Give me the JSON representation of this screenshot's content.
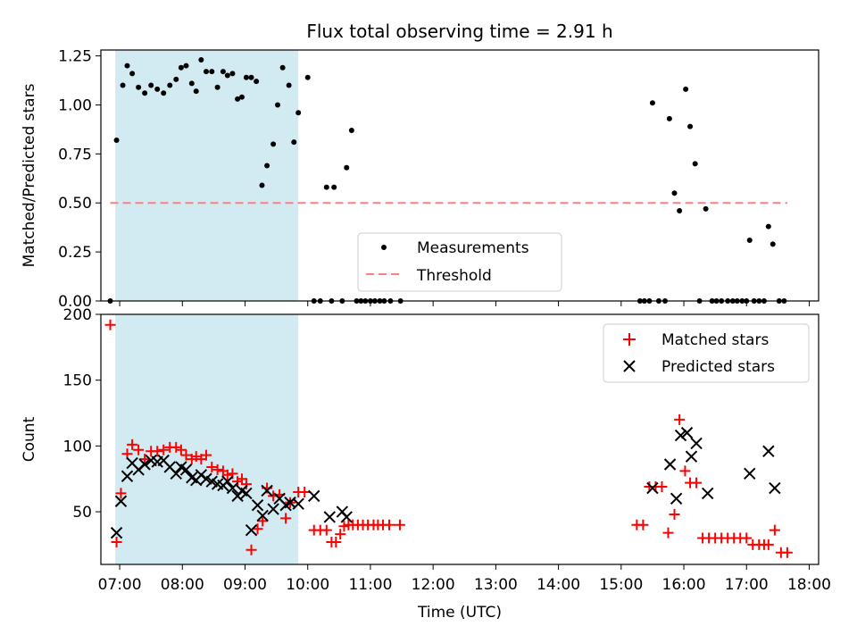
{
  "figure": {
    "title": "Flux total observing time = 2.91 h",
    "xlabel": "Time (UTC)"
  },
  "chart_data": [
    {
      "type": "scatter",
      "ylabel": "Matched/Predicted stars",
      "xlim": [
        6.7,
        18.15
      ],
      "ylim": [
        0,
        1.28
      ],
      "yticks": [
        0.0,
        0.25,
        0.5,
        0.75,
        1.0,
        1.25
      ],
      "ytick_labels": [
        "0.00",
        "0.25",
        "0.50",
        "0.75",
        "1.00",
        "1.25"
      ],
      "highlight_span": [
        6.93,
        9.85
      ],
      "highlight_color": "#add8e6",
      "legend_position": "lower-center",
      "series": [
        {
          "name": "Measurements",
          "marker": "dot",
          "color": "#000000",
          "x": [
            6.85,
            6.95,
            7.05,
            7.12,
            7.2,
            7.3,
            7.4,
            7.5,
            7.6,
            7.7,
            7.8,
            7.9,
            7.98,
            8.06,
            8.15,
            8.22,
            8.3,
            8.38,
            8.47,
            8.56,
            8.65,
            8.72,
            8.8,
            8.88,
            8.95,
            9.02,
            9.1,
            9.18,
            9.27,
            9.35,
            9.45,
            9.52,
            9.6,
            9.7,
            9.78,
            9.85,
            10.0,
            10.1,
            10.2,
            10.3,
            10.38,
            10.42,
            10.55,
            10.62,
            10.7,
            10.78,
            10.85,
            10.92,
            11.0,
            11.07,
            11.15,
            11.22,
            11.32,
            11.48,
            15.3,
            15.37,
            15.45,
            15.5,
            15.6,
            15.7,
            15.77,
            15.85,
            15.93,
            16.03,
            16.1,
            16.18,
            16.25,
            16.35,
            16.45,
            16.52,
            16.6,
            16.7,
            16.78,
            16.85,
            16.93,
            17.0,
            17.05,
            17.12,
            17.2,
            17.28,
            17.35,
            17.42,
            17.52,
            17.6
          ],
          "y": [
            0.0,
            0.82,
            1.1,
            1.2,
            1.16,
            1.09,
            1.06,
            1.1,
            1.08,
            1.06,
            1.1,
            1.13,
            1.19,
            1.2,
            1.11,
            1.07,
            1.23,
            1.17,
            1.17,
            1.09,
            1.17,
            1.15,
            1.16,
            1.03,
            1.04,
            1.14,
            1.14,
            1.12,
            0.59,
            0.69,
            0.8,
            1.0,
            1.19,
            1.1,
            0.81,
            0.96,
            1.14,
            0.0,
            0.0,
            0.58,
            0.0,
            0.58,
            0.0,
            0.68,
            0.87,
            0.0,
            0.0,
            0.0,
            0.0,
            0.0,
            0.0,
            0.0,
            0.0,
            0.0,
            0.0,
            0.0,
            0.0,
            1.01,
            0.0,
            0.0,
            0.93,
            0.55,
            0.46,
            1.08,
            0.89,
            0.7,
            0.0,
            0.47,
            0.0,
            0.0,
            0.0,
            0.0,
            0.0,
            0.0,
            0.0,
            0.0,
            0.31,
            0.0,
            0.0,
            0.0,
            0.38,
            0.29,
            0.0,
            0.0
          ]
        },
        {
          "name": "Threshold",
          "marker": "dashed-line",
          "color": "#ff7f7f",
          "x": [
            6.85,
            17.65
          ],
          "y": [
            0.5,
            0.5
          ]
        }
      ]
    },
    {
      "type": "scatter",
      "ylabel": "Count",
      "xlim": [
        6.7,
        18.15
      ],
      "ylim": [
        10,
        200
      ],
      "yticks": [
        50,
        100,
        150,
        200
      ],
      "ytick_labels": [
        "50",
        "100",
        "150",
        "200"
      ],
      "xticks": [
        7,
        8,
        9,
        10,
        11,
        12,
        13,
        14,
        15,
        16,
        17,
        18
      ],
      "xtick_labels": [
        "07:00",
        "08:00",
        "09:00",
        "10:00",
        "11:00",
        "12:00",
        "13:00",
        "14:00",
        "15:00",
        "16:00",
        "17:00",
        "18:00"
      ],
      "highlight_span": [
        6.93,
        9.85
      ],
      "highlight_color": "#add8e6",
      "legend_position": "upper-right",
      "series": [
        {
          "name": "Matched stars",
          "marker": "plus",
          "color": "#ff0000",
          "x": [
            6.85,
            6.95,
            7.02,
            7.12,
            7.2,
            7.3,
            7.4,
            7.5,
            7.6,
            7.7,
            7.8,
            7.9,
            7.98,
            8.06,
            8.15,
            8.22,
            8.3,
            8.38,
            8.47,
            8.56,
            8.65,
            8.72,
            8.8,
            8.88,
            8.95,
            9.02,
            9.1,
            9.2,
            9.28,
            9.35,
            9.45,
            9.55,
            9.65,
            9.72,
            9.85,
            9.95,
            10.1,
            10.2,
            10.3,
            10.38,
            10.45,
            10.52,
            10.58,
            10.65,
            10.72,
            10.8,
            10.88,
            10.96,
            11.05,
            11.12,
            11.2,
            11.3,
            11.47,
            15.25,
            15.35,
            15.45,
            15.55,
            15.65,
            15.75,
            15.85,
            15.93,
            16.02,
            16.1,
            16.2,
            16.3,
            16.4,
            16.5,
            16.6,
            16.7,
            16.8,
            16.9,
            17.0,
            17.1,
            17.2,
            17.28,
            17.35,
            17.45,
            17.55,
            17.65
          ],
          "y": [
            192,
            27,
            64,
            94,
            101,
            97,
            90,
            96,
            96,
            97,
            99,
            99,
            97,
            93,
            90,
            92,
            90,
            93,
            84,
            82,
            81,
            78,
            79,
            73,
            75,
            71,
            21,
            37,
            43,
            68,
            62,
            63,
            45,
            57,
            65,
            65,
            36,
            36,
            36,
            27,
            27,
            33,
            39,
            40,
            40,
            40,
            40,
            40,
            40,
            40,
            40,
            40,
            40,
            40,
            40,
            69,
            69,
            69,
            34,
            48,
            120,
            81,
            72,
            72,
            30,
            30,
            30,
            30,
            30,
            30,
            30,
            30,
            25,
            25,
            25,
            25,
            36,
            19,
            19
          ],
          "y_note": ""
        },
        {
          "name": "Predicted stars",
          "marker": "x",
          "color": "#000000",
          "x": [
            6.95,
            7.02,
            7.12,
            7.2,
            7.3,
            7.4,
            7.5,
            7.6,
            7.7,
            7.8,
            7.9,
            7.98,
            8.06,
            8.15,
            8.22,
            8.3,
            8.38,
            8.47,
            8.56,
            8.65,
            8.72,
            8.8,
            8.88,
            8.95,
            9.02,
            9.1,
            9.2,
            9.28,
            9.35,
            9.45,
            9.55,
            9.65,
            9.72,
            9.85,
            10.1,
            10.35,
            10.55,
            10.62,
            15.5,
            15.78,
            15.88,
            15.95,
            16.05,
            16.12,
            16.2,
            16.38,
            17.05,
            17.35,
            17.45
          ],
          "y": [
            34,
            58,
            77,
            87,
            82,
            86,
            89,
            88,
            89,
            84,
            79,
            84,
            82,
            76,
            74,
            78,
            75,
            73,
            71,
            70,
            73,
            68,
            62,
            66,
            64,
            36,
            55,
            47,
            66,
            52,
            60,
            55,
            57,
            56,
            62,
            46,
            50,
            46,
            68,
            86,
            60,
            108,
            110,
            92,
            102,
            64,
            79,
            96,
            68
          ]
        }
      ]
    }
  ]
}
